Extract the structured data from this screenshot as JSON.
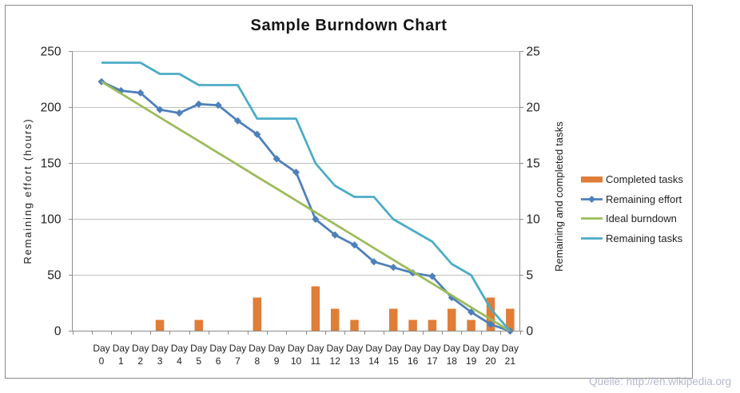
{
  "chart_data": {
    "type": "line",
    "subtype": "combo-bar-line",
    "title": "Sample Burndown Chart",
    "categories": [
      "Day 0",
      "Day 1",
      "Day 2",
      "Day 3",
      "Day 4",
      "Day 5",
      "Day 6",
      "Day 7",
      "Day 8",
      "Day 9",
      "Day 10",
      "Day 11",
      "Day 12",
      "Day 13",
      "Day 14",
      "Day 15",
      "Day 16",
      "Day 17",
      "Day 18",
      "Day 19",
      "Day 20",
      "Day 21"
    ],
    "category_word": "Day",
    "series": [
      {
        "name": "Completed tasks",
        "type": "bar",
        "axis": "right",
        "color": "#e07d36",
        "values": [
          0,
          0,
          0,
          1,
          0,
          1,
          0,
          0,
          3,
          0,
          0,
          4,
          2,
          1,
          0,
          2,
          1,
          1,
          2,
          1,
          3,
          2
        ]
      },
      {
        "name": "Remaining effort",
        "type": "line",
        "axis": "left",
        "color": "#4e7fba",
        "marker": "diamond",
        "values": [
          223,
          215,
          213,
          198,
          195,
          203,
          202,
          188,
          176,
          154,
          142,
          100,
          86,
          77,
          62,
          57,
          52,
          49,
          30,
          17,
          6,
          0
        ]
      },
      {
        "name": "Ideal burndown",
        "type": "line",
        "axis": "left",
        "color": "#9bbb59",
        "values": [
          223,
          212.4,
          201.8,
          191.1,
          180.5,
          169.9,
          159.3,
          148.7,
          138.0,
          127.4,
          116.8,
          106.2,
          95.6,
          85.0,
          74.3,
          63.7,
          53.1,
          42.5,
          31.9,
          21.2,
          10.6,
          0
        ]
      },
      {
        "name": "Remaining tasks",
        "type": "line",
        "axis": "right",
        "color": "#4bacc6",
        "values": [
          24,
          24,
          24,
          23,
          23,
          22,
          22,
          22,
          19,
          19,
          19,
          15,
          13,
          12,
          12,
          10,
          9,
          8,
          6,
          5,
          2,
          0
        ]
      }
    ],
    "y_left": {
      "label": "Remaining effort (hours)",
      "min": 0,
      "max": 250,
      "step": 50,
      "ticks": [
        0,
        50,
        100,
        150,
        200,
        250
      ]
    },
    "y_right": {
      "label": "Remaining and completed tasks",
      "min": 0,
      "max": 25,
      "step": 5,
      "ticks": [
        0,
        5,
        10,
        15,
        20,
        25
      ]
    },
    "grid": true,
    "legend_position": "right"
  },
  "legend": {
    "items": [
      {
        "label": "Completed tasks",
        "swatch": "bar-swatch",
        "color": "#e07d36"
      },
      {
        "label": "Remaining effort",
        "swatch": "line-diamond-swatch",
        "color": "#4e7fba"
      },
      {
        "label": "Ideal burndown",
        "swatch": "line-swatch",
        "color": "#9bbb59"
      },
      {
        "label": "Remaining tasks",
        "swatch": "line-swatch",
        "color": "#4bacc6"
      }
    ]
  },
  "footer": {
    "source_text": "Quelle: http://en.wikipedia.org"
  },
  "colors": {
    "bar_orange": "#e07d36",
    "effort_blue": "#4e7fba",
    "ideal_green": "#9bbb59",
    "tasks_teal": "#4bacc6",
    "gridline": "#c0c0c0",
    "axis_line": "#8c8c8c",
    "text": "#1f1f1f",
    "source_text_color": "#b4bacd",
    "frame_border": "#898989"
  }
}
